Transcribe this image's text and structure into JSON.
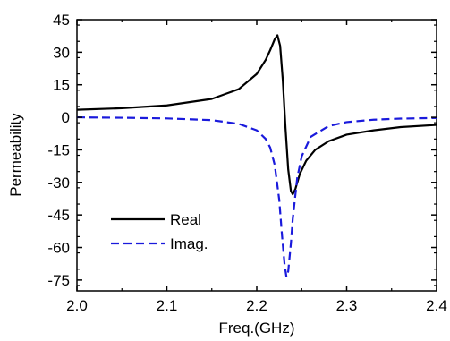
{
  "chart_data": {
    "type": "line",
    "xlabel": "Freq.(GHz)",
    "ylabel": "Permeability",
    "xlim": [
      2.0,
      2.4
    ],
    "ylim": [
      -80,
      45
    ],
    "x_ticks": [
      "2.0",
      "2.1",
      "2.2",
      "2.3",
      "2.4"
    ],
    "x_tick_values": [
      2.0,
      2.1,
      2.2,
      2.3,
      2.4
    ],
    "y_ticks": [
      "45",
      "30",
      "15",
      "0",
      "-15",
      "-30",
      "-45",
      "-60",
      "-75"
    ],
    "y_tick_values": [
      45,
      30,
      15,
      0,
      -15,
      -30,
      -45,
      -60,
      -75
    ],
    "grid": false,
    "legend_position": "lower-left",
    "series": [
      {
        "name": "Real",
        "color": "#000000",
        "dash": "solid",
        "x": [
          2.0,
          2.05,
          2.1,
          2.15,
          2.18,
          2.2,
          2.21,
          2.215,
          2.22,
          2.223,
          2.226,
          2.229,
          2.232,
          2.235,
          2.238,
          2.24,
          2.243,
          2.248,
          2.255,
          2.265,
          2.28,
          2.3,
          2.33,
          2.36,
          2.4
        ],
        "y": [
          3.5,
          4.2,
          5.5,
          8.5,
          13,
          20,
          26.5,
          31,
          36,
          37.8,
          33,
          17,
          -5,
          -24,
          -34,
          -35.5,
          -33,
          -26,
          -20,
          -15,
          -11,
          -8,
          -6,
          -4.5,
          -3.5
        ]
      },
      {
        "name": "Imag.",
        "color": "#1a1adc",
        "dash": "dashed",
        "x": [
          2.0,
          2.05,
          2.1,
          2.15,
          2.18,
          2.2,
          2.21,
          2.215,
          2.22,
          2.225,
          2.228,
          2.231,
          2.233,
          2.235,
          2.238,
          2.24,
          2.245,
          2.25,
          2.26,
          2.28,
          2.3,
          2.33,
          2.36,
          2.4
        ],
        "y": [
          0,
          -0.2,
          -0.5,
          -1.3,
          -3,
          -6,
          -10,
          -14,
          -22,
          -38,
          -54,
          -68,
          -73.5,
          -71,
          -58,
          -47,
          -28,
          -18,
          -9,
          -4,
          -2.2,
          -1.1,
          -0.6,
          -0.3
        ]
      }
    ]
  }
}
